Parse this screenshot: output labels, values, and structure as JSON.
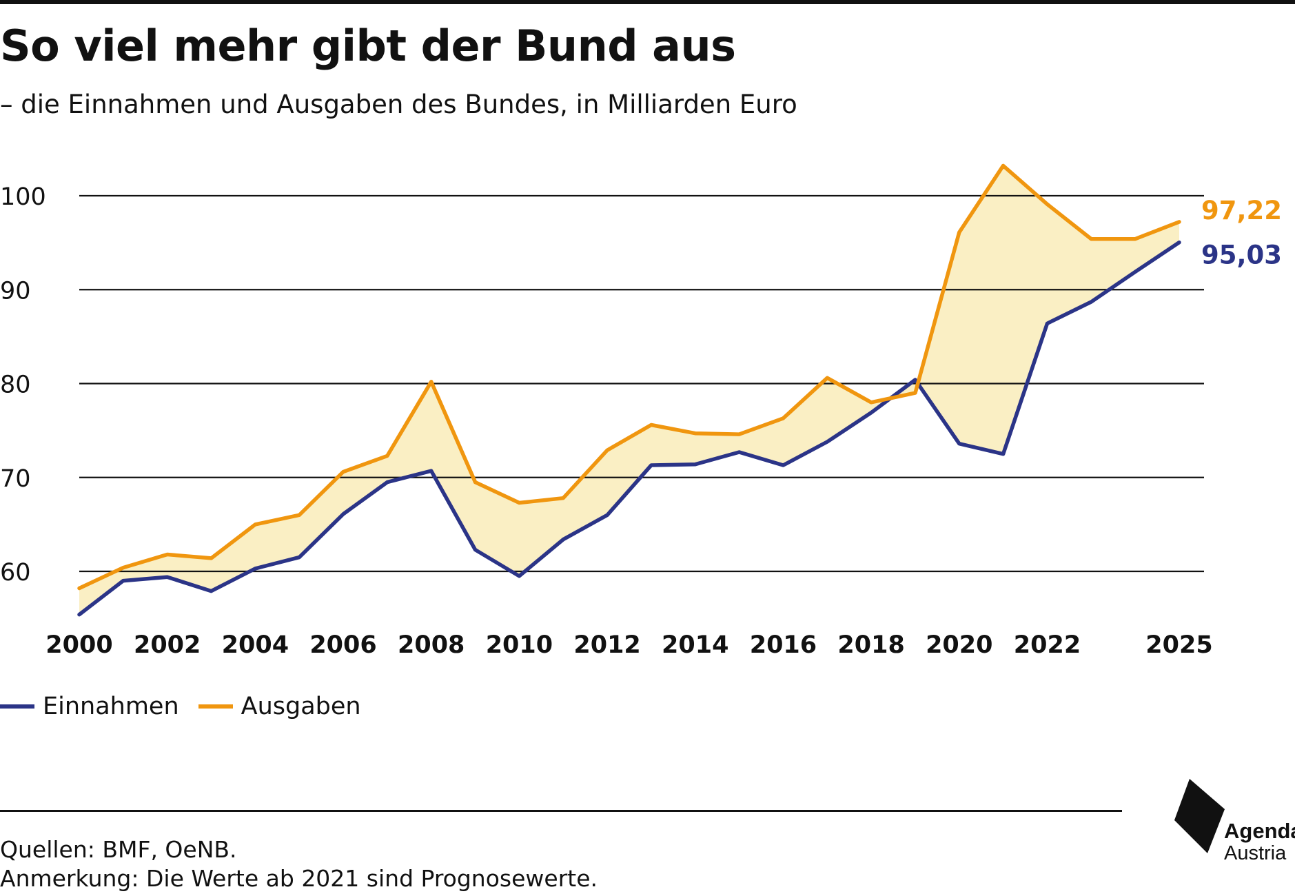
{
  "header": {
    "title": "So viel mehr gibt der Bund aus",
    "subtitle": "– die Einnahmen und Ausgaben des Bundes, in Milliarden Euro"
  },
  "colors": {
    "einnahmen": "#2b3487",
    "ausgaben": "#f0960f",
    "fill": "#faefc4",
    "grid": "#111111",
    "text": "#111111"
  },
  "chart_data": {
    "type": "line",
    "title": "So viel mehr gibt der Bund aus",
    "subtitle": "– die Einnahmen und Ausgaben des Bundes, in Milliarden Euro",
    "xlabel": "",
    "ylabel": "",
    "x": [
      2000,
      2001,
      2002,
      2003,
      2004,
      2005,
      2006,
      2007,
      2008,
      2009,
      2010,
      2011,
      2012,
      2013,
      2014,
      2015,
      2016,
      2017,
      2018,
      2019,
      2020,
      2021,
      2022,
      2023,
      2024,
      2025
    ],
    "xlim": [
      2000,
      2025
    ],
    "ylim": [
      55,
      104
    ],
    "yticks": [
      60,
      70,
      80,
      90,
      100
    ],
    "xticks": [
      2000,
      2002,
      2004,
      2006,
      2008,
      2010,
      2012,
      2014,
      2016,
      2018,
      2020,
      2022,
      2025
    ],
    "grid": "horizontal",
    "legend": "bottom-left",
    "fill_between": true,
    "series": [
      {
        "name": "Einnahmen",
        "color": "#2b3487",
        "values": [
          55.4,
          59.0,
          59.4,
          57.9,
          60.3,
          61.5,
          66.1,
          69.5,
          70.7,
          62.3,
          59.5,
          63.4,
          66.0,
          71.3,
          71.4,
          72.7,
          71.3,
          73.8,
          76.9,
          80.4,
          73.6,
          72.5,
          86.4,
          88.7,
          91.9,
          95.03
        ],
        "end_label": "95,03"
      },
      {
        "name": "Ausgaben",
        "color": "#f0960f",
        "values": [
          58.2,
          60.4,
          61.8,
          61.4,
          65.0,
          66.0,
          70.6,
          72.3,
          80.2,
          69.5,
          67.3,
          67.8,
          72.9,
          75.6,
          74.7,
          74.6,
          76.3,
          80.6,
          78.0,
          79.0,
          96.1,
          103.2,
          99.1,
          95.4,
          95.4,
          97.22
        ],
        "end_label": "97,22"
      }
    ]
  },
  "footer": {
    "source": "Quellen: BMF, OeNB.",
    "note": "Anmerkung: Die Werte ab 2021 sind Prognosewerte."
  },
  "logo": {
    "line1": "Agenda",
    "line2": "Austria"
  }
}
